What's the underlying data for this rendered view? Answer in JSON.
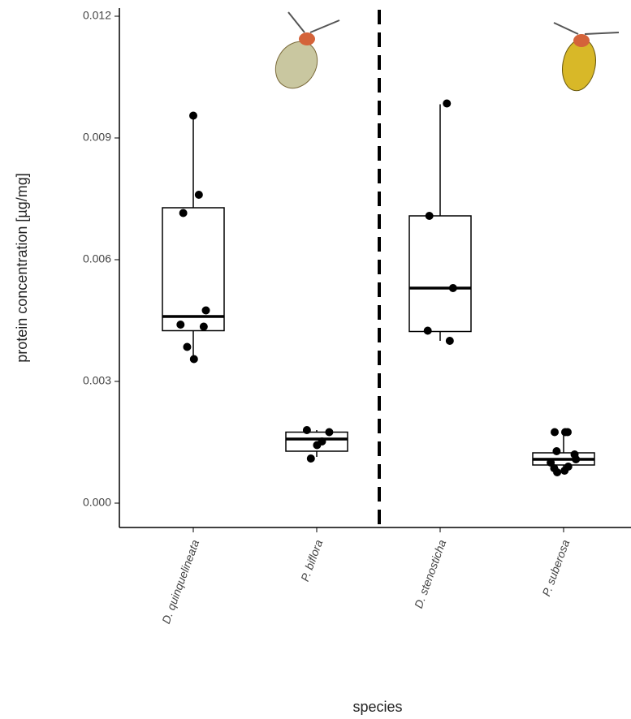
{
  "chart_data": {
    "type": "box",
    "xlabel": "species",
    "ylabel": "protein concentration [µg/mg]",
    "categories": [
      "D. quinquelineata",
      "P. biflora",
      "D. stenosticha",
      "P. suberosa"
    ],
    "ylim": [
      -0.0006,
      0.0122
    ],
    "yticks": [
      {
        "value": 0,
        "label": "0.000"
      },
      0.003,
      0.006,
      0.009,
      0.012
    ],
    "boxes": [
      {
        "whisker_low": 0.0036,
        "q1": 0.00425,
        "median": 0.0046,
        "q3": 0.00728,
        "whisker_high": 0.0095,
        "points": [
          0.00955,
          0.0076,
          0.00715,
          0.00475,
          0.0044,
          0.00435,
          0.00385,
          0.00355
        ]
      },
      {
        "whisker_low": 0.00114,
        "q1": 0.00128,
        "median": 0.00158,
        "q3": 0.00175,
        "whisker_high": 0.0018,
        "points": [
          0.00175,
          0.0018,
          0.00152,
          0.00143,
          0.0011
        ]
      },
      {
        "whisker_low": 0.004,
        "q1": 0.00423,
        "median": 0.0053,
        "q3": 0.00708,
        "whisker_high": 0.00983,
        "points": [
          0.00985,
          0.00708,
          0.0053,
          0.00425,
          0.004
        ]
      },
      {
        "whisker_low": 0.00078,
        "q1": 0.00094,
        "median": 0.00108,
        "q3": 0.00124,
        "whisker_high": 0.00175,
        "points": [
          0.00175,
          0.00175,
          0.00175,
          0.00128,
          0.0012,
          0.001,
          0.00108,
          0.00086,
          0.0009,
          0.0008,
          0.00076
        ]
      }
    ]
  }
}
